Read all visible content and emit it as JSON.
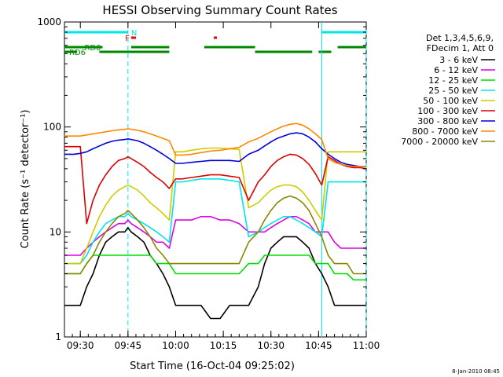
{
  "chart_data": {
    "type": "line",
    "title": "HESSI Observing Summary Count Rates",
    "xlabel": "Start Time (16-Oct-04 09:25:02)",
    "ylabel": "Count Rate (s⁻¹ detector⁻¹)",
    "x_range_min": [
      25,
      120
    ],
    "x_ticks": [
      {
        "min": 30,
        "label": "09:30"
      },
      {
        "min": 45,
        "label": "09:45"
      },
      {
        "min": 60,
        "label": "10:00"
      },
      {
        "min": 75,
        "label": "10:15"
      },
      {
        "min": 90,
        "label": "10:30"
      },
      {
        "min": 105,
        "label": "10:45"
      },
      {
        "min": 120,
        "label": "11:00"
      }
    ],
    "y_scale": "log",
    "ylim": [
      1,
      1000
    ],
    "y_ticks": [
      {
        "value": 1,
        "label": "1"
      },
      {
        "value": 10,
        "label": "10"
      },
      {
        "value": 100,
        "label": "100"
      },
      {
        "value": 1000,
        "label": "1000"
      }
    ],
    "legend_header": [
      "Det 1,3,4,5,6,9,",
      "FDecim 1, Att 0"
    ],
    "legend_position": "right",
    "series": [
      {
        "name": "3 - 6 keV",
        "color": "#000000"
      },
      {
        "name": "6 - 12 keV",
        "color": "#e000e0"
      },
      {
        "name": "12 - 25 keV",
        "color": "#00dd00"
      },
      {
        "name": "25 - 50 keV",
        "color": "#00e5e5"
      },
      {
        "name": "50 - 100 keV",
        "color": "#cccc00"
      },
      {
        "name": "100 - 300 keV",
        "color": "#dd0000"
      },
      {
        "name": "300 - 800 keV",
        "color": "#0000dd"
      },
      {
        "name": "800 - 7000 keV",
        "color": "#ff8800"
      },
      {
        "name": "7000 - 20000 keV",
        "color": "#888800"
      }
    ],
    "series_data_min": [
      25,
      28,
      30,
      32,
      34,
      36,
      38,
      40,
      42,
      44,
      45,
      46,
      48,
      50,
      52,
      54,
      56,
      58,
      60,
      62,
      65,
      68,
      71,
      74,
      77,
      80,
      83,
      86,
      88,
      90,
      92,
      94,
      96,
      98,
      100,
      102,
      104,
      106,
      108,
      110,
      112,
      114,
      116,
      118,
      120
    ],
    "series_values": [
      [
        2,
        2,
        2,
        3,
        4,
        6,
        8,
        9,
        10,
        10,
        11,
        10,
        9,
        8,
        6,
        5,
        4,
        3,
        2,
        2,
        2,
        2,
        1.5,
        1.5,
        2,
        2,
        2,
        3,
        5,
        7,
        8,
        9,
        9,
        9,
        8,
        7,
        5,
        4,
        3,
        2,
        2,
        2,
        2,
        2,
        2
      ],
      [
        6,
        6,
        6,
        7,
        8,
        9,
        10,
        11,
        12,
        12,
        13,
        12,
        11,
        10,
        9,
        8,
        8,
        7,
        13,
        13,
        13,
        14,
        14,
        13,
        13,
        12,
        10,
        10,
        10,
        11,
        12,
        13,
        14,
        14,
        13,
        12,
        10,
        10,
        10,
        8,
        7,
        7,
        7,
        7,
        7
      ],
      [
        4,
        4,
        4,
        5,
        6,
        6,
        6,
        6,
        6,
        6,
        6,
        6,
        6,
        6,
        6,
        5,
        5,
        5,
        4,
        4,
        4,
        4,
        4,
        4,
        4,
        4,
        5,
        5,
        6,
        6,
        6,
        6,
        6,
        6,
        6,
        6,
        5,
        5,
        5,
        4,
        4,
        4,
        3.5,
        3.5,
        3.5
      ],
      [
        5,
        5,
        5,
        6,
        8,
        10,
        12,
        13,
        14,
        14,
        15,
        14,
        13,
        12,
        11,
        10,
        9,
        8,
        30,
        30,
        31,
        32,
        32,
        32,
        31,
        30,
        9,
        10,
        11,
        12,
        13,
        14,
        14,
        13,
        12,
        11,
        10,
        9,
        30,
        30,
        30,
        30,
        30,
        30,
        30
      ],
      [
        5,
        5,
        5,
        7,
        10,
        14,
        18,
        22,
        25,
        27,
        28,
        27,
        25,
        22,
        19,
        17,
        15,
        13,
        58,
        58,
        60,
        62,
        63,
        63,
        62,
        61,
        17,
        19,
        22,
        25,
        27,
        28,
        28,
        27,
        24,
        20,
        16,
        13,
        58,
        58,
        58,
        58,
        58,
        58,
        58
      ],
      [
        65,
        65,
        65,
        12,
        20,
        28,
        35,
        42,
        48,
        50,
        52,
        50,
        46,
        42,
        37,
        33,
        30,
        26,
        32,
        32,
        33,
        34,
        35,
        35,
        34,
        33,
        20,
        30,
        35,
        42,
        48,
        52,
        55,
        54,
        50,
        44,
        36,
        28,
        52,
        48,
        44,
        42,
        41,
        41,
        40
      ],
      [
        55,
        55,
        56,
        58,
        62,
        66,
        70,
        73,
        75,
        76,
        77,
        76,
        74,
        70,
        65,
        60,
        55,
        50,
        45,
        45,
        46,
        47,
        48,
        48,
        48,
        47,
        55,
        60,
        66,
        72,
        78,
        82,
        86,
        88,
        86,
        80,
        72,
        62,
        55,
        50,
        46,
        44,
        43,
        42,
        42
      ],
      [
        82,
        82,
        82,
        84,
        86,
        88,
        90,
        92,
        94,
        95,
        96,
        95,
        93,
        90,
        86,
        82,
        78,
        74,
        54,
        54,
        55,
        57,
        59,
        60,
        62,
        64,
        72,
        78,
        84,
        90,
        96,
        102,
        106,
        108,
        104,
        96,
        86,
        76,
        50,
        46,
        44,
        43,
        42,
        42,
        42
      ],
      [
        4,
        4,
        4,
        5,
        6,
        8,
        10,
        12,
        14,
        15,
        16,
        15,
        13,
        11,
        9,
        7,
        6,
        5,
        5,
        5,
        5,
        5,
        5,
        5,
        5,
        5,
        8,
        10,
        13,
        16,
        19,
        21,
        22,
        21,
        19,
        16,
        12,
        9,
        6,
        5,
        5,
        5,
        4,
        4,
        4
      ]
    ],
    "flags": [
      {
        "label": "N",
        "color": "#00e5e5",
        "segments": [
          [
            25,
            45
          ],
          [
            106,
            120
          ]
        ]
      },
      {
        "label": "F",
        "color": "#ee0000",
        "segments": [
          [
            46,
            47.5
          ],
          [
            72,
            73
          ]
        ]
      },
      {
        "label": "RD0",
        "color": "#008800",
        "segments": [
          [
            25,
            37
          ],
          [
            46,
            58
          ],
          [
            69,
            85
          ],
          [
            111,
            120
          ]
        ]
      },
      {
        "label": "RD6",
        "color": "#008800",
        "segments": [
          [
            25,
            29
          ],
          [
            36,
            58
          ],
          [
            85,
            103
          ],
          [
            105,
            109
          ]
        ]
      }
    ],
    "vertical_lines": [
      {
        "min": 45,
        "color": "#00e5e5",
        "style": "dashed"
      },
      {
        "min": 106,
        "color": "#00e5e5",
        "style": "solid"
      },
      {
        "min": 120,
        "color": "#00e5e5",
        "style": "dashed"
      }
    ]
  },
  "footer_timestamp": "8-Jan-2010 08:45"
}
